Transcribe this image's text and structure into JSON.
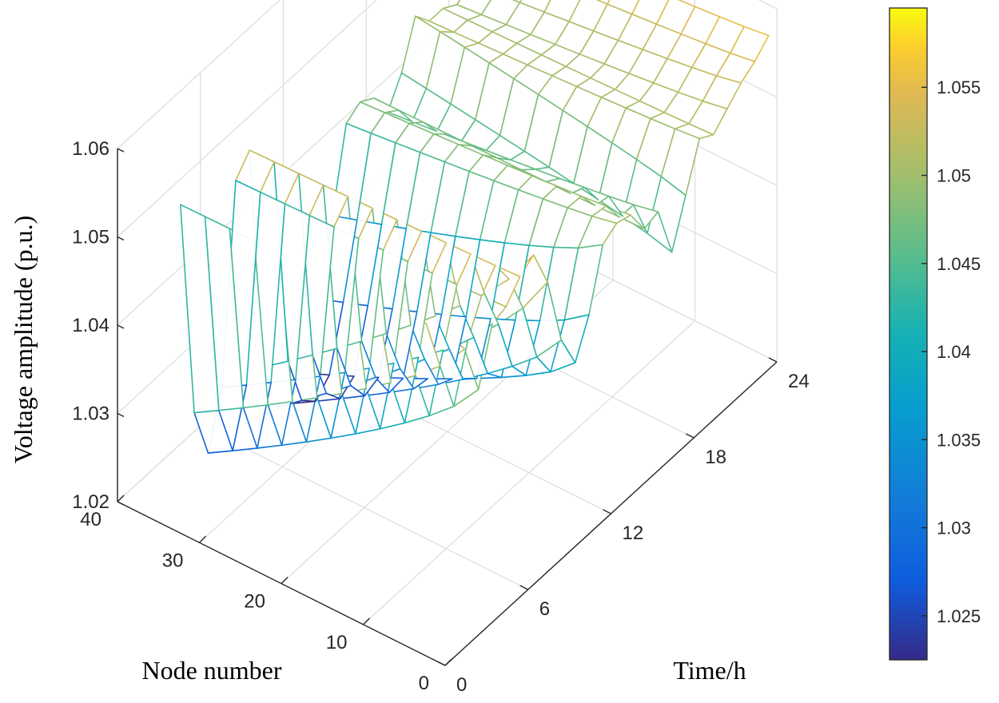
{
  "chart_data": {
    "type": "surface",
    "zlabel": "Voltage amplitude (p.u.)",
    "xlabel": "Time/h",
    "ylabel": "Node number",
    "xlim": [
      0,
      24
    ],
    "ylim": [
      0,
      40
    ],
    "zlim": [
      1.02,
      1.06
    ],
    "x_ticks": [
      "0",
      "6",
      "12",
      "18",
      "24"
    ],
    "y_ticks": [
      "0",
      "10",
      "20",
      "30",
      "40"
    ],
    "z_ticks": [
      "1.02",
      "1.03",
      "1.04",
      "1.05",
      "1.06"
    ],
    "grid": true,
    "colormap": "parula",
    "colorbar": {
      "position": "right",
      "ticks": [
        "1.025",
        "1.03",
        "1.035",
        "1.04",
        "1.045",
        "1.05",
        "1.055"
      ],
      "range": [
        1.0225,
        1.0595
      ]
    },
    "hours": [
      1,
      2,
      3,
      4,
      5,
      6,
      7,
      8,
      9,
      10,
      11,
      12,
      13,
      14,
      15,
      16,
      17,
      18,
      19,
      20,
      21,
      22,
      23,
      24
    ],
    "nodes": [
      1,
      4,
      7,
      10,
      13,
      16,
      19,
      22,
      25,
      28,
      31,
      34
    ],
    "near_node_voltage_by_hour": [
      1.0555,
      1.0525,
      1.0465,
      1.0525,
      1.053,
      1.055,
      1.056,
      1.0515,
      1.0435,
      1.0395,
      1.0435,
      1.05,
      1.051,
      1.0505,
      1.0475,
      1.048,
      1.042,
      1.047,
      1.052,
      1.051,
      1.0525,
      1.054,
      1.055,
      1.0565
    ],
    "far_node_voltage_by_hour": [
      1.055,
      1.03,
      1.024,
      1.03,
      1.052,
      1.054,
      1.028,
      1.022,
      1.021,
      1.023,
      1.03,
      1.038,
      1.047,
      1.048,
      1.047,
      1.044,
      1.047,
      1.052,
      1.05,
      1.05,
      1.049,
      1.05,
      1.052,
      1.054
    ],
    "profile_shape": "exponent of decay from near node to far node",
    "profile_exponent": 0.8
  }
}
